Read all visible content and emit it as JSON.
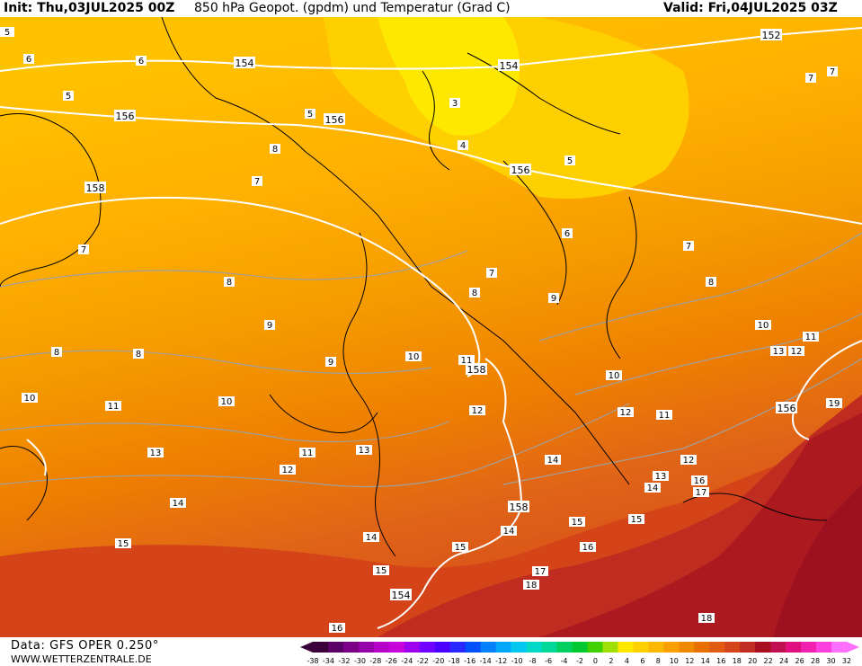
{
  "header": {
    "init_label": "Init: Thu,03JUL2025 00Z",
    "title": "850 hPa Geopot. (gpdm) und Temperatur (Grad C)",
    "valid_label": "Valid: Fri,04JUL2025 03Z"
  },
  "footer": {
    "data_source": "Data: GFS OPER 0.250°",
    "website": "WWW.WETTERZENTRALE.DE"
  },
  "colorbar": {
    "ticks": [
      "-38",
      "-34",
      "-32",
      "-30",
      "-28",
      "-26",
      "-24",
      "-22",
      "-20",
      "-18",
      "-16",
      "-14",
      "-12",
      "-10",
      "-8",
      "-6",
      "-4",
      "-2",
      "0",
      "2",
      "4",
      "6",
      "8",
      "10",
      "12",
      "14",
      "16",
      "18",
      "20",
      "22",
      "24",
      "26",
      "28",
      "30",
      "32"
    ],
    "colors": [
      "#3a003a",
      "#5a0066",
      "#7a0088",
      "#9600a8",
      "#b400c8",
      "#c800dc",
      "#a000f0",
      "#7000ff",
      "#4b00ff",
      "#2828ff",
      "#0050ff",
      "#0080ff",
      "#00a8ff",
      "#00c8f0",
      "#00d8c8",
      "#00d898",
      "#00d060",
      "#00c830",
      "#40d000",
      "#a0e000",
      "#ffe800",
      "#ffd000",
      "#ffb800",
      "#ffa000",
      "#f08800",
      "#e87000",
      "#e05a10",
      "#d44418",
      "#c02c20",
      "#a81020",
      "#c01050",
      "#e01080",
      "#f020b0",
      "#ff40e0",
      "#ff70ff"
    ]
  },
  "map": {
    "geopotential_labels": [
      "154",
      "154",
      "156",
      "156",
      "156",
      "158",
      "158",
      "158",
      "156",
      "152",
      "154"
    ],
    "temperature_labels": [
      "5",
      "5",
      "5",
      "3",
      "4",
      "5",
      "6",
      "6",
      "6",
      "7",
      "7",
      "7",
      "7",
      "7",
      "8",
      "8",
      "8",
      "8",
      "8",
      "8",
      "9",
      "9",
      "9",
      "10",
      "10",
      "10",
      "10",
      "11",
      "11",
      "11",
      "11",
      "11",
      "12",
      "12",
      "12",
      "12",
      "12",
      "13",
      "13",
      "13",
      "13",
      "14",
      "14",
      "14",
      "14",
      "14",
      "15",
      "15",
      "15",
      "15",
      "15",
      "16",
      "16",
      "16",
      "17",
      "17",
      "18",
      "18",
      "19",
      "7",
      "10"
    ],
    "field_colors": {
      "t4": "#ffe800",
      "t6": "#ffd000",
      "t8": "#ffb800",
      "t10": "#f59a00",
      "t12": "#ee8000",
      "t14": "#e06418",
      "t16": "#d44418",
      "t18": "#c02c20",
      "t20": "#ac1a20"
    }
  }
}
